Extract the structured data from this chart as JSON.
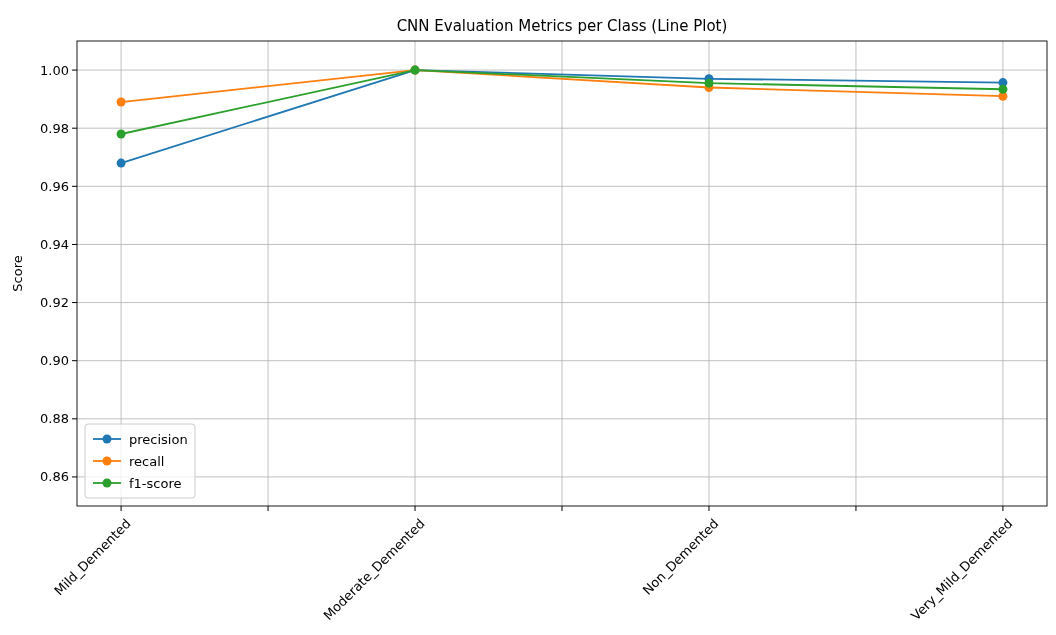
{
  "chart_data": {
    "type": "line",
    "title": "CNN Evaluation Metrics per Class (Line Plot)",
    "ylabel": "Score",
    "categories": [
      "Mild_Demented",
      "Moderate_Demented",
      "Non_Demented",
      "Very_Mild_Demented"
    ],
    "ylim": [
      0.85,
      1.01
    ],
    "yticks": [
      {
        "value": 0.86,
        "label": "0.86"
      },
      {
        "value": 0.88,
        "label": "0.88"
      },
      {
        "value": 0.9,
        "label": "0.90"
      },
      {
        "value": 0.92,
        "label": "0.92"
      },
      {
        "value": 0.94,
        "label": "0.94"
      },
      {
        "value": 0.96,
        "label": "0.96"
      },
      {
        "value": 0.98,
        "label": "0.98"
      },
      {
        "value": 1.0,
        "label": "1.00"
      }
    ],
    "series": [
      {
        "name": "precision",
        "color": "#1f77b4",
        "values": [
          0.968,
          1.0,
          0.997,
          0.9957
        ]
      },
      {
        "name": "recall",
        "color": "#ff7f0e",
        "values": [
          0.989,
          1.0,
          0.994,
          0.991
        ]
      },
      {
        "name": "f1-score",
        "color": "#2ca02c",
        "values": [
          0.978,
          1.0,
          0.9955,
          0.9934
        ]
      }
    ],
    "grid": true,
    "legend": "bottom left",
    "marker": "circle",
    "line_style": "solid"
  }
}
